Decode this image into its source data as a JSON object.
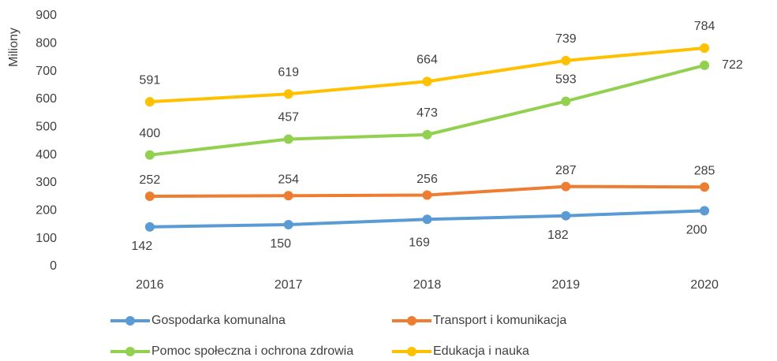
{
  "chart_data": {
    "type": "line",
    "y_label": "Miliony",
    "categories": [
      "2016",
      "2017",
      "2018",
      "2019",
      "2020"
    ],
    "series": [
      {
        "name": "Gospodarka komunalna",
        "color": "#5b9bd5",
        "values": [
          142,
          150,
          169,
          182,
          200
        ]
      },
      {
        "name": "Transport i komunikacja",
        "color": "#ed7d31",
        "values": [
          252,
          254,
          256,
          287,
          285
        ]
      },
      {
        "name": "Pomoc społeczna i ochrona zdrowia",
        "color": "#92d050",
        "values": [
          400,
          457,
          473,
          593,
          722
        ]
      },
      {
        "name": "Edukacja i nauka",
        "color": "#ffc000",
        "values": [
          591,
          619,
          664,
          739,
          784
        ]
      }
    ],
    "ylim": [
      0,
      900
    ],
    "yticks": [
      0,
      100,
      200,
      300,
      400,
      500,
      600,
      700,
      800,
      900
    ],
    "grid": false,
    "legend": "bottom"
  }
}
